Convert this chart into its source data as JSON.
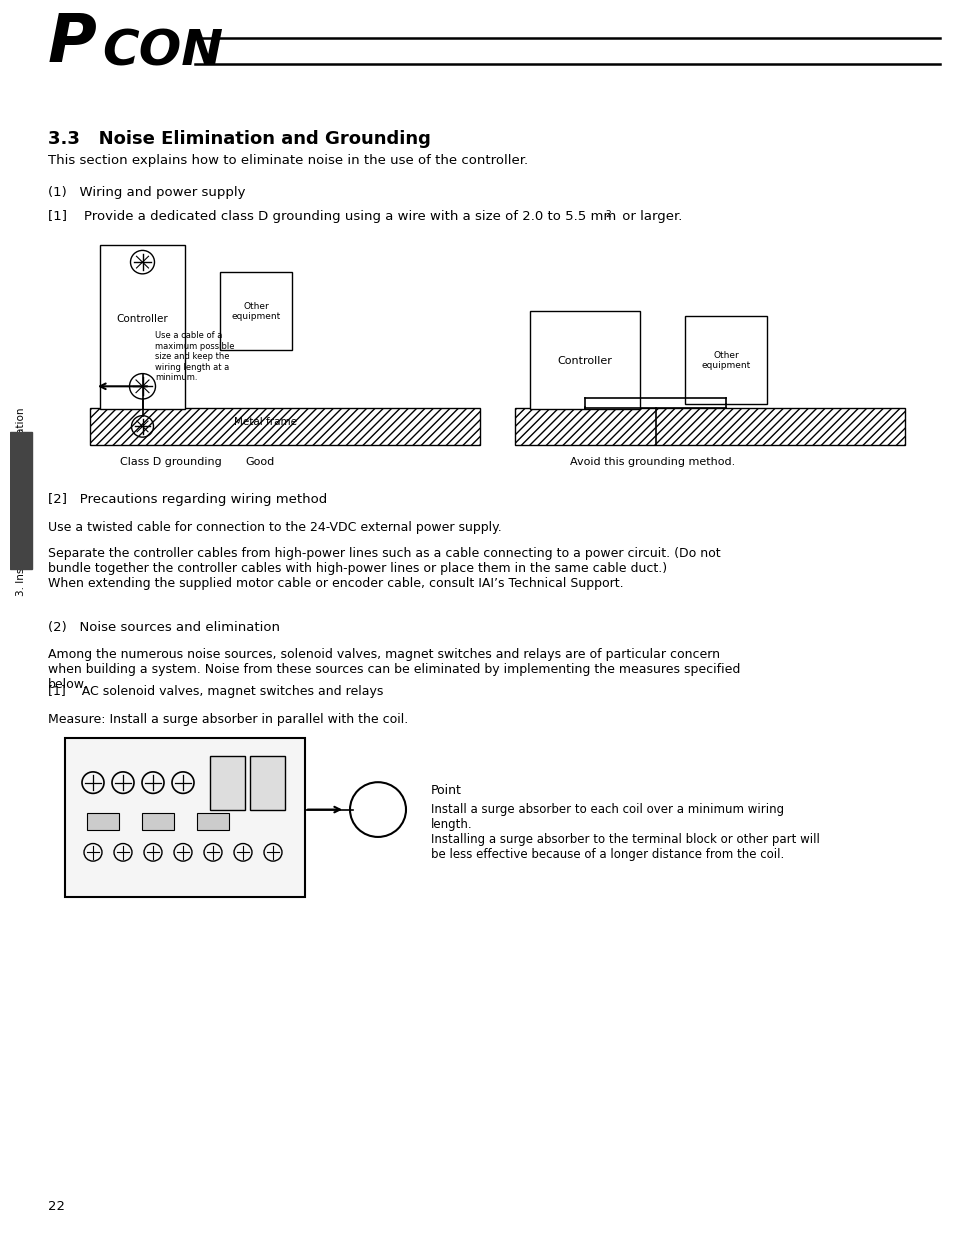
{
  "bg_color": "#ffffff",
  "page_width": 9.54,
  "page_height": 12.35,
  "logo_text_P": "P",
  "logo_text_CON": "CON",
  "section_title": "3.3   Noise Elimination and Grounding",
  "intro_text": "This section explains how to eliminate noise in the use of the controller.",
  "sub1_title": "(1)   Wiring and power supply",
  "sub1_item1": "[1]    Provide a dedicated class D grounding using a wire with a size of 2.0 to 5.5 mm",
  "sub1_item1_sup": "2",
  "sub1_item1_end": " or larger.",
  "label_class_d": "Class D grounding",
  "label_good": "Good",
  "label_avoid": "Avoid this grounding method.",
  "label_controller1": "Controller",
  "label_other1": "Other\nequipment",
  "label_cable_note": "Use a cable of a\nmaximum possible\nsize and keep the\nwiring length at a\nminimum.",
  "label_metal_frame": "Metal frame",
  "label_controller2": "Controller",
  "label_other2": "Other\nequipment",
  "sub2_title": "[2]   Precautions regarding wiring method",
  "sub2_text1": "Use a twisted cable for connection to the 24-VDC external power supply.",
  "sub2_text2": "Separate the controller cables from high-power lines such as a cable connecting to a power circuit. (Do not\nbundle together the controller cables with high-power lines or place them in the same cable duct.)\nWhen extending the supplied motor cable or encoder cable, consult IAI’s Technical Support.",
  "sub3_title": "(2)   Noise sources and elimination",
  "sub3_text": "Among the numerous noise sources, solenoid valves, magnet switches and relays are of particular concern\nwhen building a system. Noise from these sources can be eliminated by implementing the measures specified\nbelow.",
  "sub3_item1": "[1]    AC solenoid valves, magnet switches and relays",
  "sub3_measure": "Measure: Install a surge absorber in parallel with the coil.",
  "point_title": "Point",
  "point_text": "Install a surge absorber to each coil over a minimum wiring\nlength.\nInstalling a surge absorber to the terminal block or other part will\nbe less effective because of a longer distance from the coil.",
  "sidebar_text": "3. Installation and Noise Elimination",
  "page_number": "22"
}
